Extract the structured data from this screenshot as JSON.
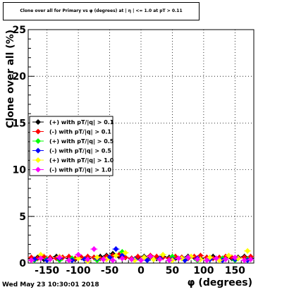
{
  "title": "Clone  over all for Primary vs φ (degrees) at | η | <= 1.0 at pT > 0.11",
  "footer": "Wed May 23 10:30:01 2018",
  "chart_data": {
    "type": "scatter",
    "xlabel": "φ (degrees)",
    "ylabel": "Clone  over all (%)",
    "xlim": [
      -180,
      180
    ],
    "ylim": [
      0,
      25
    ],
    "grid": true,
    "legend_position": "middle-left",
    "x_ticks": [
      -150,
      -100,
      -50,
      0,
      50,
      100,
      150
    ],
    "y_ticks": [
      0,
      5,
      10,
      15,
      20,
      25
    ],
    "series": [
      {
        "name": "(+) with pT/|q| > 0.1",
        "color": "#000000",
        "x": [
          -175,
          -165,
          -155,
          -145,
          -135,
          -125,
          -115,
          -105,
          -95,
          -85,
          -75,
          -65,
          -55,
          -45,
          -35,
          -25,
          -15,
          -5,
          5,
          15,
          25,
          35,
          45,
          55,
          65,
          75,
          85,
          95,
          105,
          115,
          125,
          135,
          145,
          155,
          165,
          175
        ],
        "y": [
          0.5,
          0.6,
          0.4,
          0.5,
          0.7,
          0.6,
          0.5,
          0.4,
          0.6,
          0.5,
          0.6,
          0.7,
          0.8,
          1.0,
          0.7,
          0.6,
          0.5,
          0.6,
          0.7,
          0.6,
          0.5,
          0.7,
          0.6,
          0.5,
          0.6,
          0.7,
          0.6,
          0.5,
          0.6,
          0.7,
          0.5,
          0.6,
          0.5,
          0.6,
          0.7,
          0.5
        ]
      },
      {
        "name": "(-) with pT/|q| > 0.1",
        "color": "#ff0000",
        "x": [
          -175,
          -165,
          -155,
          -145,
          -135,
          -125,
          -115,
          -105,
          -95,
          -85,
          -75,
          -65,
          -55,
          -45,
          -35,
          -25,
          -15,
          -5,
          5,
          15,
          25,
          35,
          45,
          55,
          65,
          75,
          85,
          95,
          105,
          115,
          125,
          135,
          145,
          155,
          165,
          175
        ],
        "y": [
          0.6,
          0.5,
          0.7,
          0.6,
          0.5,
          0.6,
          0.7,
          0.5,
          0.6,
          0.7,
          0.6,
          0.5,
          0.7,
          0.8,
          0.9,
          0.6,
          0.5,
          0.7,
          0.6,
          0.8,
          0.7,
          0.6,
          0.5,
          0.7,
          0.6,
          0.5,
          0.7,
          0.8,
          0.6,
          0.5,
          0.6,
          0.7,
          0.6,
          0.5,
          0.6,
          0.7
        ]
      },
      {
        "name": "(+) with pT/|q| > 0.5",
        "color": "#00ff00",
        "x": [
          -170,
          -150,
          -130,
          -110,
          -90,
          -70,
          -50,
          -30,
          -10,
          10,
          30,
          50,
          70,
          90,
          110,
          130,
          150,
          170
        ],
        "y": [
          0.3,
          0.4,
          0.3,
          0.5,
          0.4,
          0.3,
          0.6,
          1.2,
          0.4,
          0.3,
          0.5,
          0.7,
          0.4,
          0.3,
          0.4,
          0.5,
          0.3,
          0.4
        ]
      },
      {
        "name": "(-) with pT/|q| > 0.5",
        "color": "#0000ff",
        "x": [
          -170,
          -150,
          -130,
          -110,
          -90,
          -70,
          -50,
          -40,
          -30,
          -10,
          10,
          30,
          50,
          70,
          90,
          110,
          130,
          150,
          170
        ],
        "y": [
          0.4,
          0.3,
          0.5,
          0.3,
          0.4,
          0.5,
          0.6,
          1.5,
          0.8,
          0.4,
          0.3,
          0.5,
          0.4,
          0.3,
          0.5,
          0.4,
          0.3,
          0.4,
          0.3
        ]
      },
      {
        "name": "(+) with pT/|q| > 1.0",
        "color": "#ffff00",
        "x": [
          -175,
          -160,
          -145,
          -130,
          -115,
          -100,
          -85,
          -70,
          -55,
          -40,
          -25,
          -10,
          5,
          20,
          35,
          50,
          65,
          80,
          95,
          110,
          125,
          140,
          155,
          170
        ],
        "y": [
          0.3,
          0.9,
          0.4,
          0.7,
          0.3,
          0.5,
          0.2,
          0.6,
          0.4,
          0.8,
          1.1,
          0.3,
          0.6,
          0.4,
          0.9,
          0.3,
          0.5,
          0.7,
          0.4,
          0.6,
          0.3,
          0.8,
          0.5,
          1.3
        ]
      },
      {
        "name": "(-) with pT/|q| > 1.0",
        "color": "#ff00ff",
        "x": [
          -175,
          -160,
          -145,
          -130,
          -115,
          -100,
          -85,
          -75,
          -60,
          -45,
          -30,
          -15,
          0,
          15,
          30,
          45,
          60,
          75,
          90,
          105,
          120,
          135,
          150,
          165,
          175
        ],
        "y": [
          0.3,
          0.5,
          0.4,
          0.6,
          0.3,
          0.9,
          0.4,
          1.5,
          0.4,
          0.3,
          0.5,
          0.4,
          0.3,
          0.7,
          0.4,
          0.3,
          0.5,
          0.6,
          0.4,
          0.3,
          0.5,
          0.4,
          0.6,
          0.3,
          0.4
        ]
      }
    ]
  }
}
